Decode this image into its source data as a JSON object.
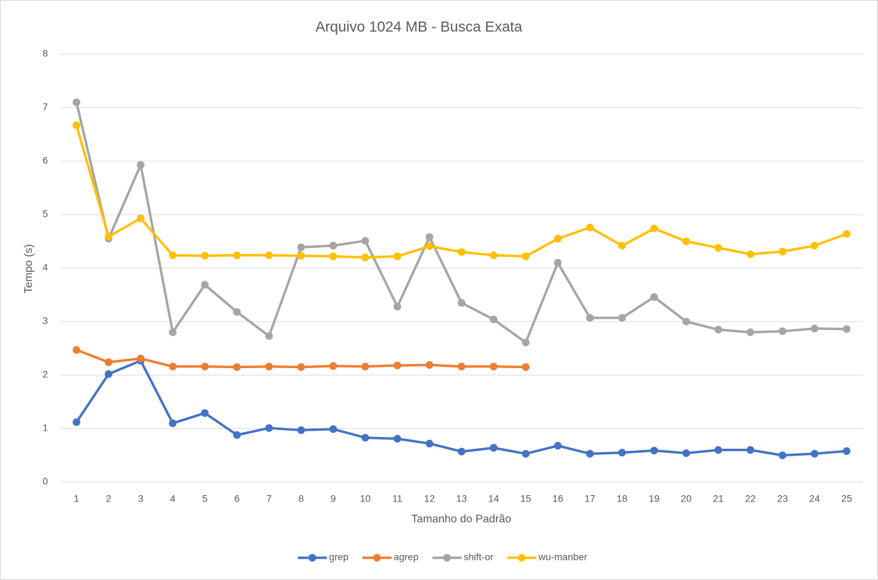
{
  "chart_data": {
    "type": "line",
    "title": "Arquivo 1024 MB - Busca Exata",
    "x_label": "Tamanho do Padrão",
    "y_label": "Tempo (s)",
    "categories": [
      "1",
      "2",
      "3",
      "4",
      "5",
      "6",
      "7",
      "8",
      "9",
      "10",
      "11",
      "12",
      "13",
      "14",
      "15",
      "16",
      "17",
      "18",
      "19",
      "20",
      "21",
      "22",
      "23",
      "24",
      "25"
    ],
    "series": [
      {
        "name": "grep",
        "color": "#4472c4",
        "values": [
          1.12,
          2.02,
          2.27,
          1.1,
          1.29,
          0.88,
          1.01,
          0.97,
          0.99,
          0.83,
          0.81,
          0.72,
          0.57,
          0.64,
          0.53,
          0.68,
          0.53,
          0.55,
          0.59,
          0.54,
          0.6,
          0.6,
          0.5,
          0.53,
          0.58
        ]
      },
      {
        "name": "agrep",
        "color": "#ed7d31",
        "values": [
          2.47,
          2.24,
          2.31,
          2.16,
          2.16,
          2.15,
          2.16,
          2.15,
          2.17,
          2.16,
          2.18,
          2.19,
          2.16,
          2.16,
          2.15,
          null,
          null,
          null,
          null,
          null,
          null,
          null,
          null,
          null,
          null
        ]
      },
      {
        "name": "shift-or",
        "color": "#a5a5a5",
        "values": [
          7.1,
          4.55,
          5.93,
          2.8,
          3.69,
          3.18,
          2.73,
          4.39,
          4.42,
          4.51,
          3.28,
          4.58,
          3.35,
          3.04,
          2.61,
          4.1,
          3.07,
          3.07,
          3.46,
          3.0,
          2.85,
          2.8,
          2.82,
          2.87,
          2.86
        ]
      },
      {
        "name": "wu-manber",
        "color": "#ffc000",
        "values": [
          6.67,
          4.59,
          4.93,
          4.24,
          4.23,
          4.24,
          4.24,
          4.23,
          4.22,
          4.2,
          4.22,
          4.41,
          4.3,
          4.24,
          4.22,
          4.55,
          4.76,
          4.42,
          4.74,
          4.5,
          4.38,
          4.26,
          4.31,
          4.42,
          4.64
        ]
      }
    ],
    "ylim": [
      0,
      8
    ],
    "yticks": [
      0,
      1,
      2,
      3,
      4,
      5,
      6,
      7,
      8
    ],
    "grid": true,
    "legend": "bottom"
  }
}
